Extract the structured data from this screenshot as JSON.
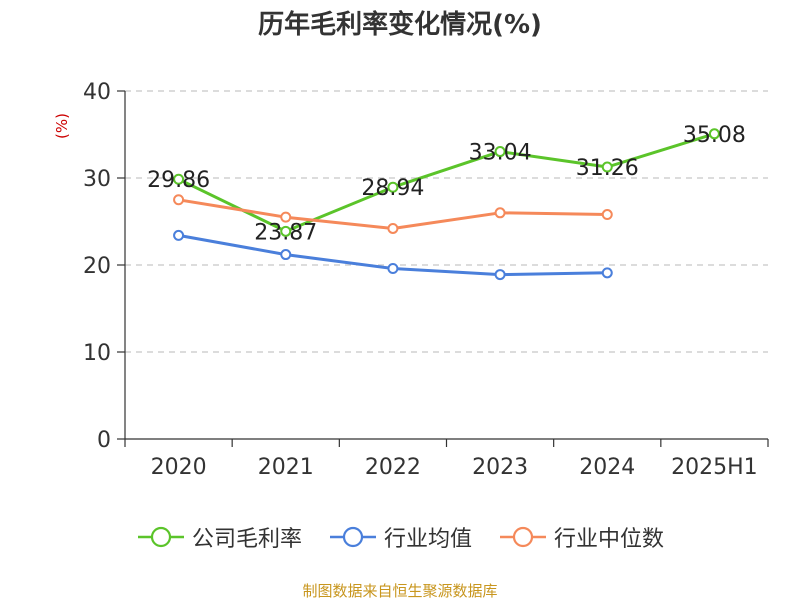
{
  "chart_data": {
    "type": "line",
    "title": "历年毛利率变化情况(%)",
    "ylabel": "(%)",
    "categories": [
      "2020",
      "2021",
      "2022",
      "2023",
      "2024",
      "2025H1"
    ],
    "ylim": [
      0,
      40
    ],
    "yticks": [
      0,
      10,
      20,
      30,
      40
    ],
    "grid": true,
    "legend_position": "bottom",
    "series": [
      {
        "name": "公司毛利率",
        "color": "#5bc42a",
        "values": [
          29.86,
          23.87,
          28.94,
          33.04,
          31.26,
          35.08
        ],
        "labels": [
          "29.86",
          "23.87",
          "28.94",
          "33.04",
          "31.26",
          "35.08"
        ]
      },
      {
        "name": "行业均值",
        "color": "#4a7fdb",
        "values": [
          23.4,
          21.2,
          19.6,
          18.9,
          19.1,
          null
        ]
      },
      {
        "name": "行业中位数",
        "color": "#f5895a",
        "values": [
          27.5,
          25.5,
          24.2,
          26.0,
          25.8,
          null
        ]
      }
    ]
  },
  "source_note": "制图数据来自恒生聚源数据库"
}
